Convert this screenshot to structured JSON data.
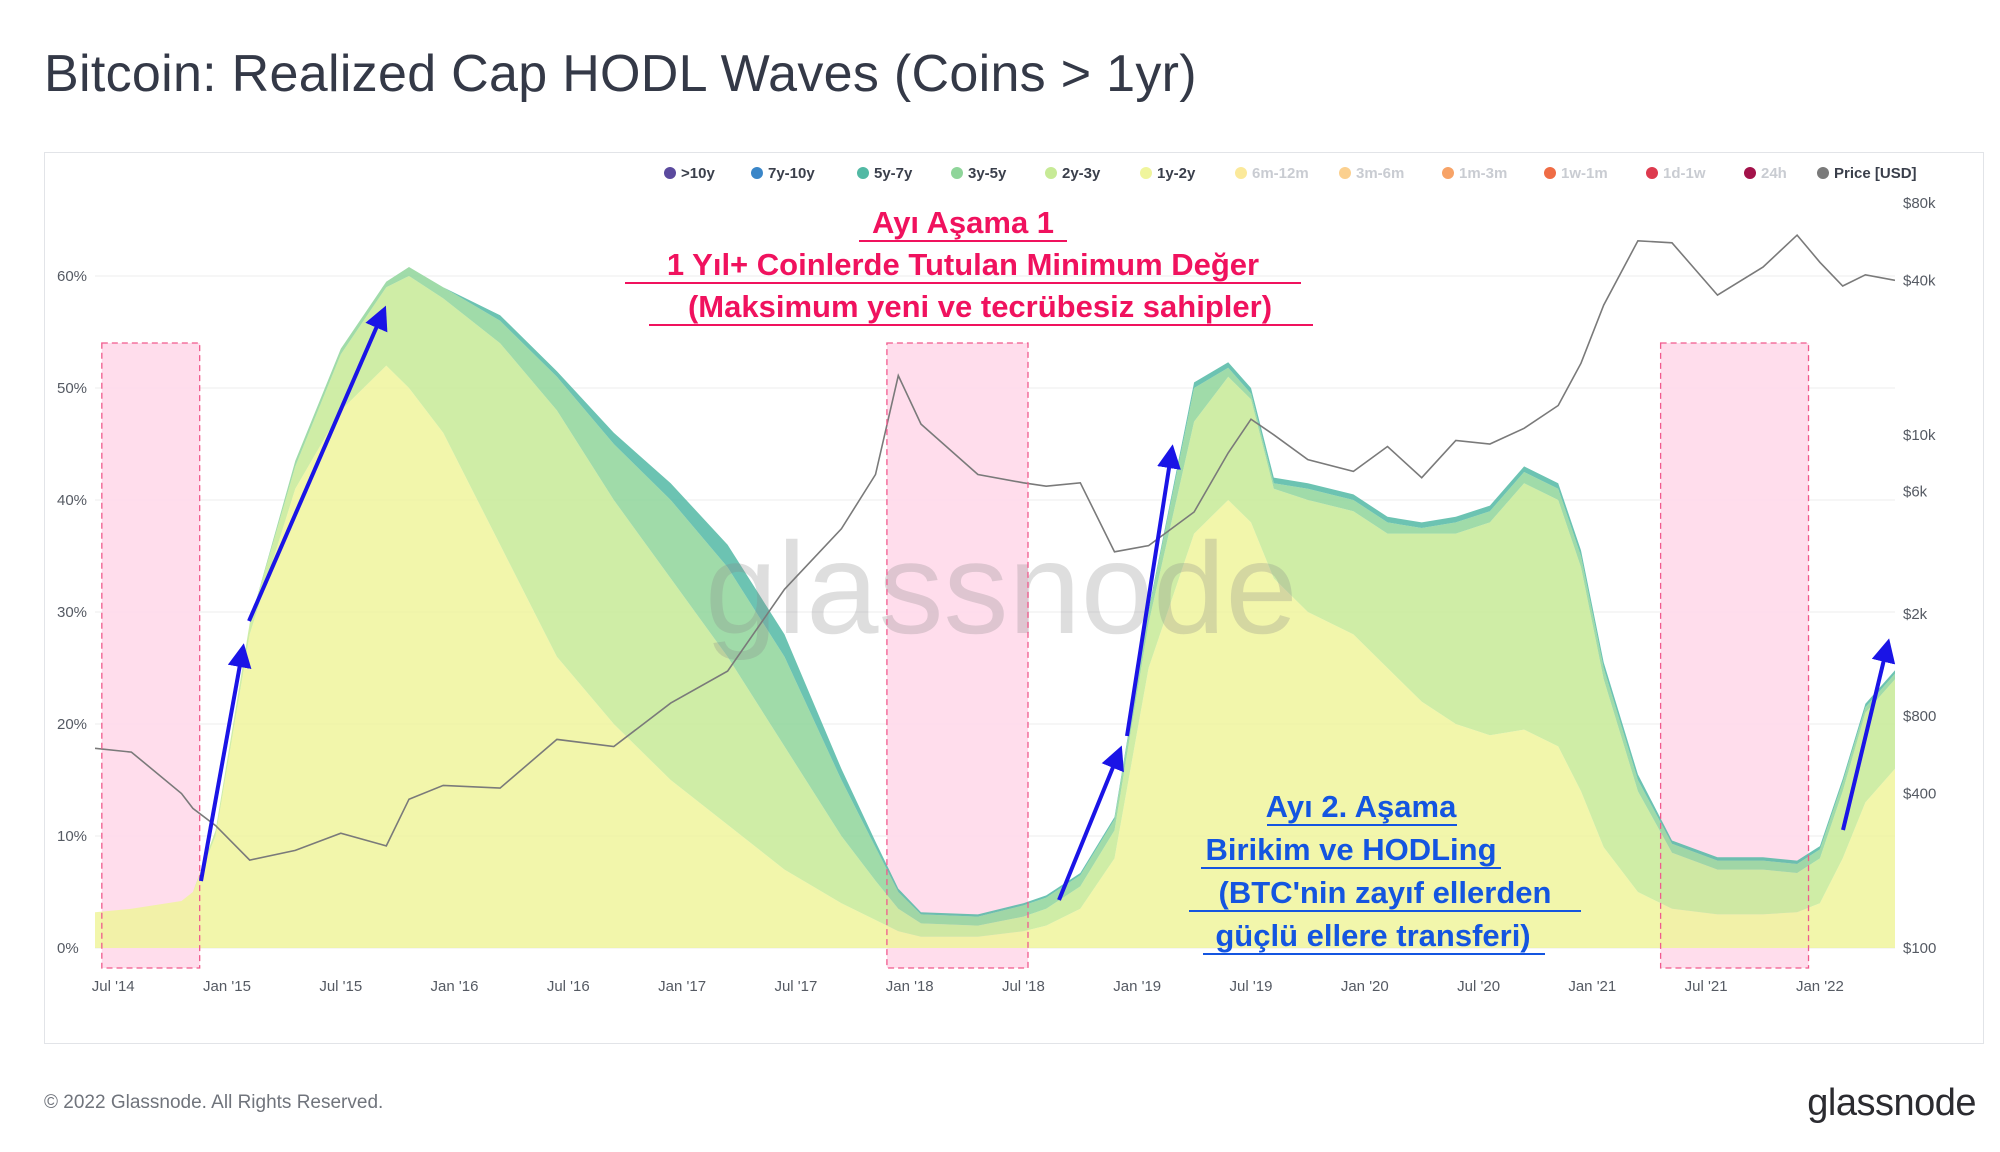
{
  "page": {
    "title": "Bitcoin: Realized Cap HODL Waves (Coins > 1yr)",
    "watermark": "glassnode",
    "copyright": "© 2022 Glassnode. All Rights Reserved.",
    "logo": "glassnode"
  },
  "annotations": {
    "top": {
      "line1": "Ayı Aşama 1",
      "line2": "1 Yıl+ Coinlerde Tutulan Minimum Değer",
      "line3": "(Maksimum yeni ve tecrübesiz sahipler)",
      "color": "#f0125e"
    },
    "bottom": {
      "line1": "Ayı 2. Aşama",
      "line2": "Birikim ve HODLing",
      "line3": "(BTC'nin zayıf ellerden",
      "line4": "güçlü ellere transferi)",
      "color": "#1455e0"
    }
  },
  "chart_data": {
    "type": "area",
    "title": "Bitcoin: Realized Cap HODL Waves (Coins > 1yr)",
    "stacked": true,
    "legend": {
      "position": "top-right",
      "items": [
        {
          "label": ">10y",
          "color": "#5b4a9e",
          "active": true
        },
        {
          "label": "7y-10y",
          "color": "#3a86c8",
          "active": true
        },
        {
          "label": "5y-7y",
          "color": "#52b9a4",
          "active": true
        },
        {
          "label": "3y-5y",
          "color": "#8fd59a",
          "active": true
        },
        {
          "label": "2y-3y",
          "color": "#c7ea96",
          "active": true
        },
        {
          "label": "1y-2y",
          "color": "#f0f59c",
          "active": true
        },
        {
          "label": "6m-12m",
          "color": "#fbe99a",
          "active": false
        },
        {
          "label": "3m-6m",
          "color": "#fbd08f",
          "active": false
        },
        {
          "label": "1m-3m",
          "color": "#f7a367",
          "active": false
        },
        {
          "label": "1w-1m",
          "color": "#ef6c45",
          "active": false
        },
        {
          "label": "1d-1w",
          "color": "#dd3a4e",
          "active": false
        },
        {
          "label": "24h",
          "color": "#a3124a",
          "active": false
        },
        {
          "label": "Price [USD]",
          "color": "#7a7a7a",
          "active": true
        }
      ]
    },
    "x_ticks": [
      "Jul '14",
      "Jan '15",
      "Jul '15",
      "Jan '16",
      "Jul '16",
      "Jan '17",
      "Jul '17",
      "Jan '18",
      "Jul '18",
      "Jan '19",
      "Jul '19",
      "Jan '20",
      "Jul '20",
      "Jan '21",
      "Jul '21",
      "Jan '22"
    ],
    "x_tick_years": [
      2014.5,
      2015.0,
      2015.5,
      2016.0,
      2016.5,
      2017.0,
      2017.5,
      2018.0,
      2018.5,
      2019.0,
      2019.5,
      2020.0,
      2020.5,
      2021.0,
      2021.5,
      2022.0
    ],
    "xlim_years": [
      2014.42,
      2022.33
    ],
    "y_left": {
      "ticks": [
        "0%",
        "10%",
        "20%",
        "30%",
        "40%",
        "50%",
        "60%"
      ],
      "values": [
        0,
        10,
        20,
        30,
        40,
        50,
        60
      ],
      "range": [
        0,
        70
      ]
    },
    "y_right": {
      "ticks": [
        "$100",
        "$400",
        "$800",
        "$2k",
        "$6k",
        "$10k",
        "$40k",
        "$80k"
      ],
      "values": [
        100,
        400,
        800,
        2000,
        6000,
        10000,
        40000,
        80000
      ],
      "scale": "log",
      "range": [
        100,
        80000
      ]
    },
    "x": [
      2014.42,
      2014.58,
      2014.8,
      2014.85,
      2014.95,
      2015.1,
      2015.3,
      2015.5,
      2015.7,
      2015.8,
      2015.95,
      2016.2,
      2016.45,
      2016.7,
      2016.95,
      2017.2,
      2017.45,
      2017.7,
      2017.85,
      2017.95,
      2018.05,
      2018.3,
      2018.5,
      2018.6,
      2018.75,
      2018.9,
      2019.05,
      2019.25,
      2019.4,
      2019.5,
      2019.6,
      2019.75,
      2019.95,
      2020.1,
      2020.25,
      2020.4,
      2020.55,
      2020.7,
      2020.85,
      2020.95,
      2021.05,
      2021.2,
      2021.35,
      2021.55,
      2021.75,
      2021.9,
      2022.0,
      2022.1,
      2022.2,
      2022.33
    ],
    "series": [
      {
        "name": "1y-2y",
        "values": [
          3.2,
          3.5,
          4.2,
          5.0,
          10.0,
          28.0,
          41.0,
          48.0,
          52.0,
          50.0,
          46.0,
          36.0,
          26.0,
          20.0,
          15.0,
          11.0,
          7.0,
          4.0,
          2.5,
          1.5,
          1.0,
          1.0,
          1.5,
          2.0,
          3.5,
          8.0,
          25.0,
          37.0,
          40.0,
          38.0,
          33.0,
          30.0,
          28.0,
          25.0,
          22.0,
          20.0,
          19.0,
          19.5,
          18.0,
          14.0,
          9.0,
          5.0,
          3.5,
          3.0,
          3.0,
          3.2,
          4.0,
          8.0,
          13.0,
          16.0
        ]
      },
      {
        "name": "2y-3y",
        "values": [
          0,
          0,
          0,
          0,
          0.5,
          1.0,
          2.0,
          5.0,
          7.0,
          10.0,
          12.0,
          18.0,
          22.0,
          20.0,
          18.0,
          15.0,
          11.0,
          6.0,
          3.5,
          2.0,
          1.2,
          1.0,
          1.3,
          1.5,
          2.0,
          2.5,
          4.0,
          10.0,
          11.0,
          11.0,
          8.0,
          10.0,
          11.0,
          12.0,
          15.0,
          17.0,
          19.0,
          22.0,
          22.0,
          20.0,
          15.0,
          9.0,
          5.0,
          4.0,
          4.0,
          3.5,
          4.0,
          6.0,
          8.0,
          8.0
        ]
      },
      {
        "name": "3y-5y",
        "values": [
          0,
          0,
          0,
          0,
          0,
          0,
          0.5,
          0.5,
          0.5,
          0.8,
          1.0,
          2.0,
          3.0,
          5.0,
          7.0,
          8.0,
          8.0,
          5.0,
          3.0,
          1.5,
          0.8,
          0.8,
          1.0,
          1.0,
          1.0,
          1.0,
          1.0,
          3.0,
          0.8,
          0.5,
          0.5,
          1.0,
          1.0,
          1.0,
          0.5,
          1.0,
          1.0,
          1.0,
          1.0,
          1.0,
          1.0,
          1.0,
          0.8,
          0.8,
          0.8,
          0.8,
          0.8,
          0.8,
          0.5,
          0.5
        ]
      },
      {
        "name": "5y-7y",
        "values": [
          0,
          0,
          0,
          0,
          0,
          0,
          0,
          0,
          0,
          0,
          0,
          0.5,
          0.5,
          1.0,
          1.5,
          2.0,
          2.0,
          1.0,
          0.5,
          0.3,
          0.2,
          0.2,
          0.2,
          0.2,
          0.2,
          0.2,
          0.2,
          0.5,
          0.5,
          0.5,
          0.5,
          0.5,
          0.5,
          0.5,
          0.5,
          0.5,
          0.5,
          0.5,
          0.5,
          0.5,
          0.5,
          0.5,
          0.3,
          0.3,
          0.3,
          0.3,
          0.3,
          0.3,
          0.3,
          0.3
        ]
      },
      {
        "name": "Price [USD]",
        "values": [
          600,
          580,
          400,
          350,
          300,
          220,
          240,
          280,
          250,
          380,
          430,
          420,
          650,
          610,
          900,
          1200,
          2500,
          4300,
          7000,
          17000,
          11000,
          7000,
          6500,
          6300,
          6500,
          3500,
          3700,
          5000,
          8500,
          11500,
          10000,
          8000,
          7200,
          9000,
          6800,
          9500,
          9200,
          10600,
          13000,
          19000,
          32000,
          57000,
          56000,
          35000,
          45000,
          60000,
          47000,
          38000,
          42000,
          40000
        ]
      }
    ],
    "shaded_regions": [
      {
        "label": "",
        "x_start": 2014.45,
        "x_end": 2014.88
      },
      {
        "label": "",
        "x_start": 2017.9,
        "x_end": 2018.52
      },
      {
        "label": "",
        "x_start": 2021.3,
        "x_end": 2021.95
      }
    ]
  }
}
